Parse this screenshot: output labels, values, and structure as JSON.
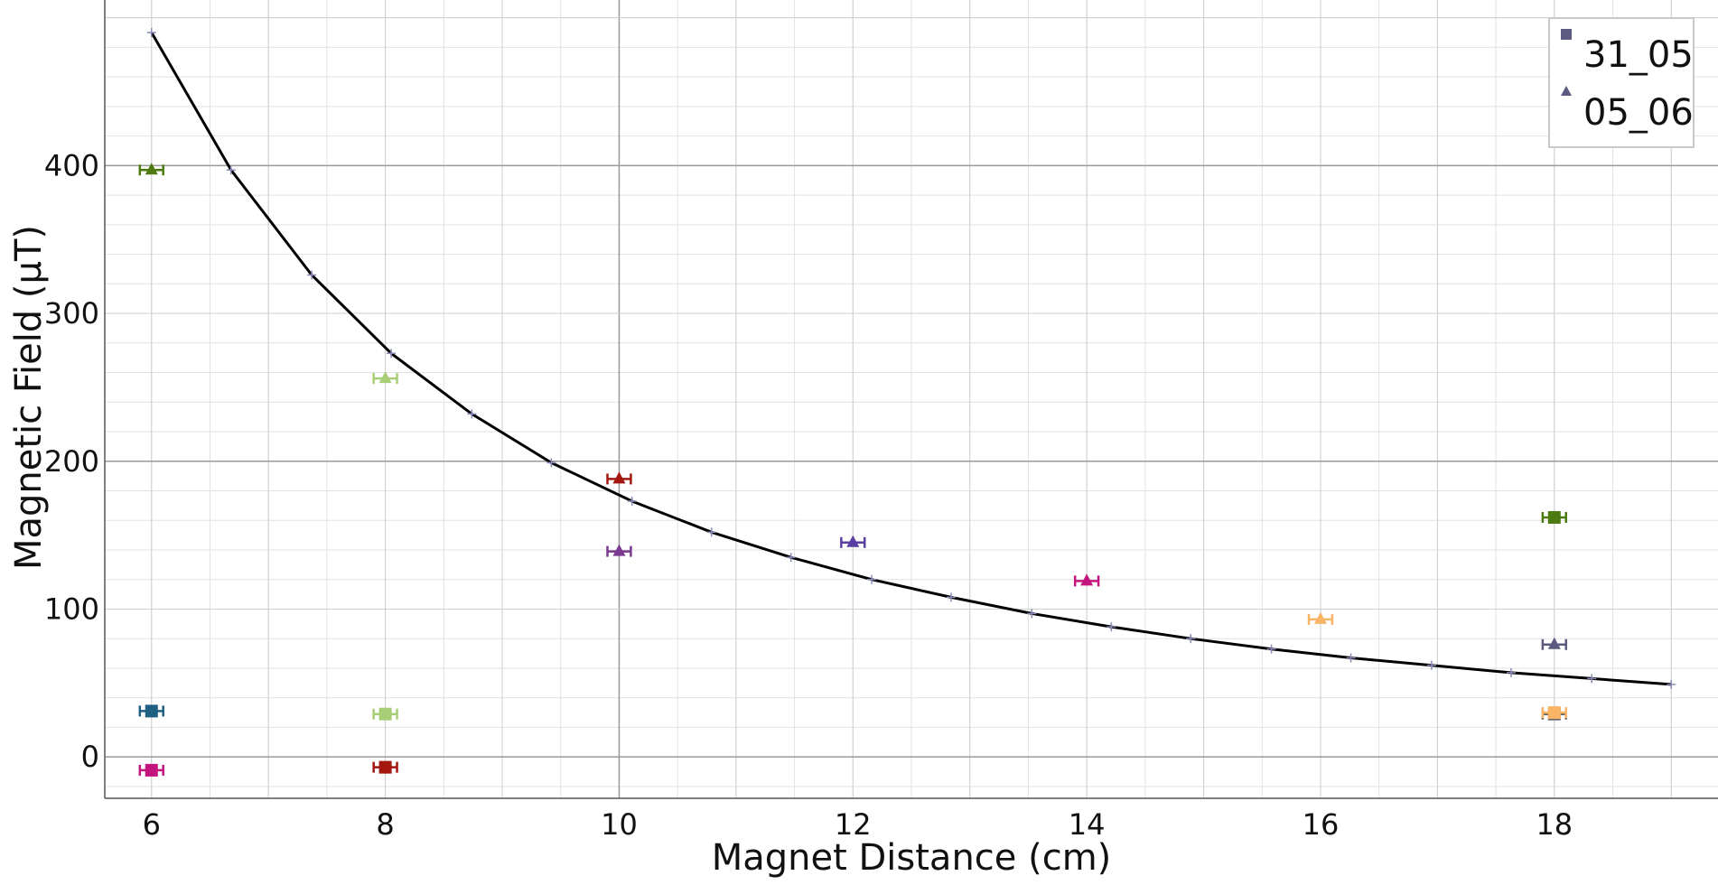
{
  "chart_data": {
    "type": "scatter",
    "title": "",
    "xlabel": "Magnet Distance (cm)",
    "ylabel": "Magnetic Field (μT)",
    "xlim": [
      5.6,
      19.4
    ],
    "ylim": [
      -28,
      512
    ],
    "x_ticks": [
      6,
      8,
      10,
      12,
      14,
      16,
      18
    ],
    "y_ticks": [
      0,
      100,
      200,
      300,
      400
    ],
    "grid": true,
    "legend": {
      "placement": "top-right",
      "entries": [
        {
          "label": "31_05",
          "marker": "square",
          "color": "#5c5a80"
        },
        {
          "label": "05_06",
          "marker": "triangle",
          "color": "#5c5a80"
        }
      ]
    },
    "series": [
      {
        "label": "31_05",
        "marker": "square",
        "x_error": 0.1,
        "points": [
          {
            "x": 6,
            "y": 31,
            "color": "#1f5f82"
          },
          {
            "x": 6,
            "y": -9,
            "color": "#c4147e"
          },
          {
            "x": 8,
            "y": 29,
            "color": "#a8cf78"
          },
          {
            "x": 8,
            "y": -7,
            "color": "#a3170f"
          },
          {
            "x": 18,
            "y": 162,
            "color": "#4e7a12"
          },
          {
            "x": 18,
            "y": 29,
            "color": "#666666"
          },
          {
            "x": 18,
            "y": 30,
            "color": "#f9b465"
          }
        ]
      },
      {
        "label": "05_06",
        "marker": "triangle",
        "x_error": 0.1,
        "points": [
          {
            "x": 6,
            "y": 397,
            "color": "#4e7a12"
          },
          {
            "x": 8,
            "y": 256,
            "color": "#a8cf78"
          },
          {
            "x": 10,
            "y": 188,
            "color": "#a3170f"
          },
          {
            "x": 10,
            "y": 139,
            "color": "#7a3a8f"
          },
          {
            "x": 12,
            "y": 145,
            "color": "#5a3fa3"
          },
          {
            "x": 14,
            "y": 119,
            "color": "#c4147e"
          },
          {
            "x": 16,
            "y": 93,
            "color": "#f9b465"
          },
          {
            "x": 18,
            "y": 76,
            "color": "#5c5a80"
          }
        ]
      }
    ],
    "fit_curve": {
      "color": "#000000",
      "marker_color": "#8a8ab8",
      "x": [
        6.0,
        6.68,
        7.37,
        8.05,
        8.74,
        9.42,
        10.11,
        10.79,
        11.47,
        12.16,
        12.84,
        13.53,
        14.21,
        14.89,
        15.58,
        16.26,
        16.95,
        17.63,
        18.32,
        19.0
      ],
      "y": [
        490,
        397,
        326,
        273,
        232,
        199,
        173,
        152,
        135,
        120,
        108,
        97,
        88,
        80,
        73,
        67,
        62,
        57,
        53,
        49
      ]
    }
  }
}
